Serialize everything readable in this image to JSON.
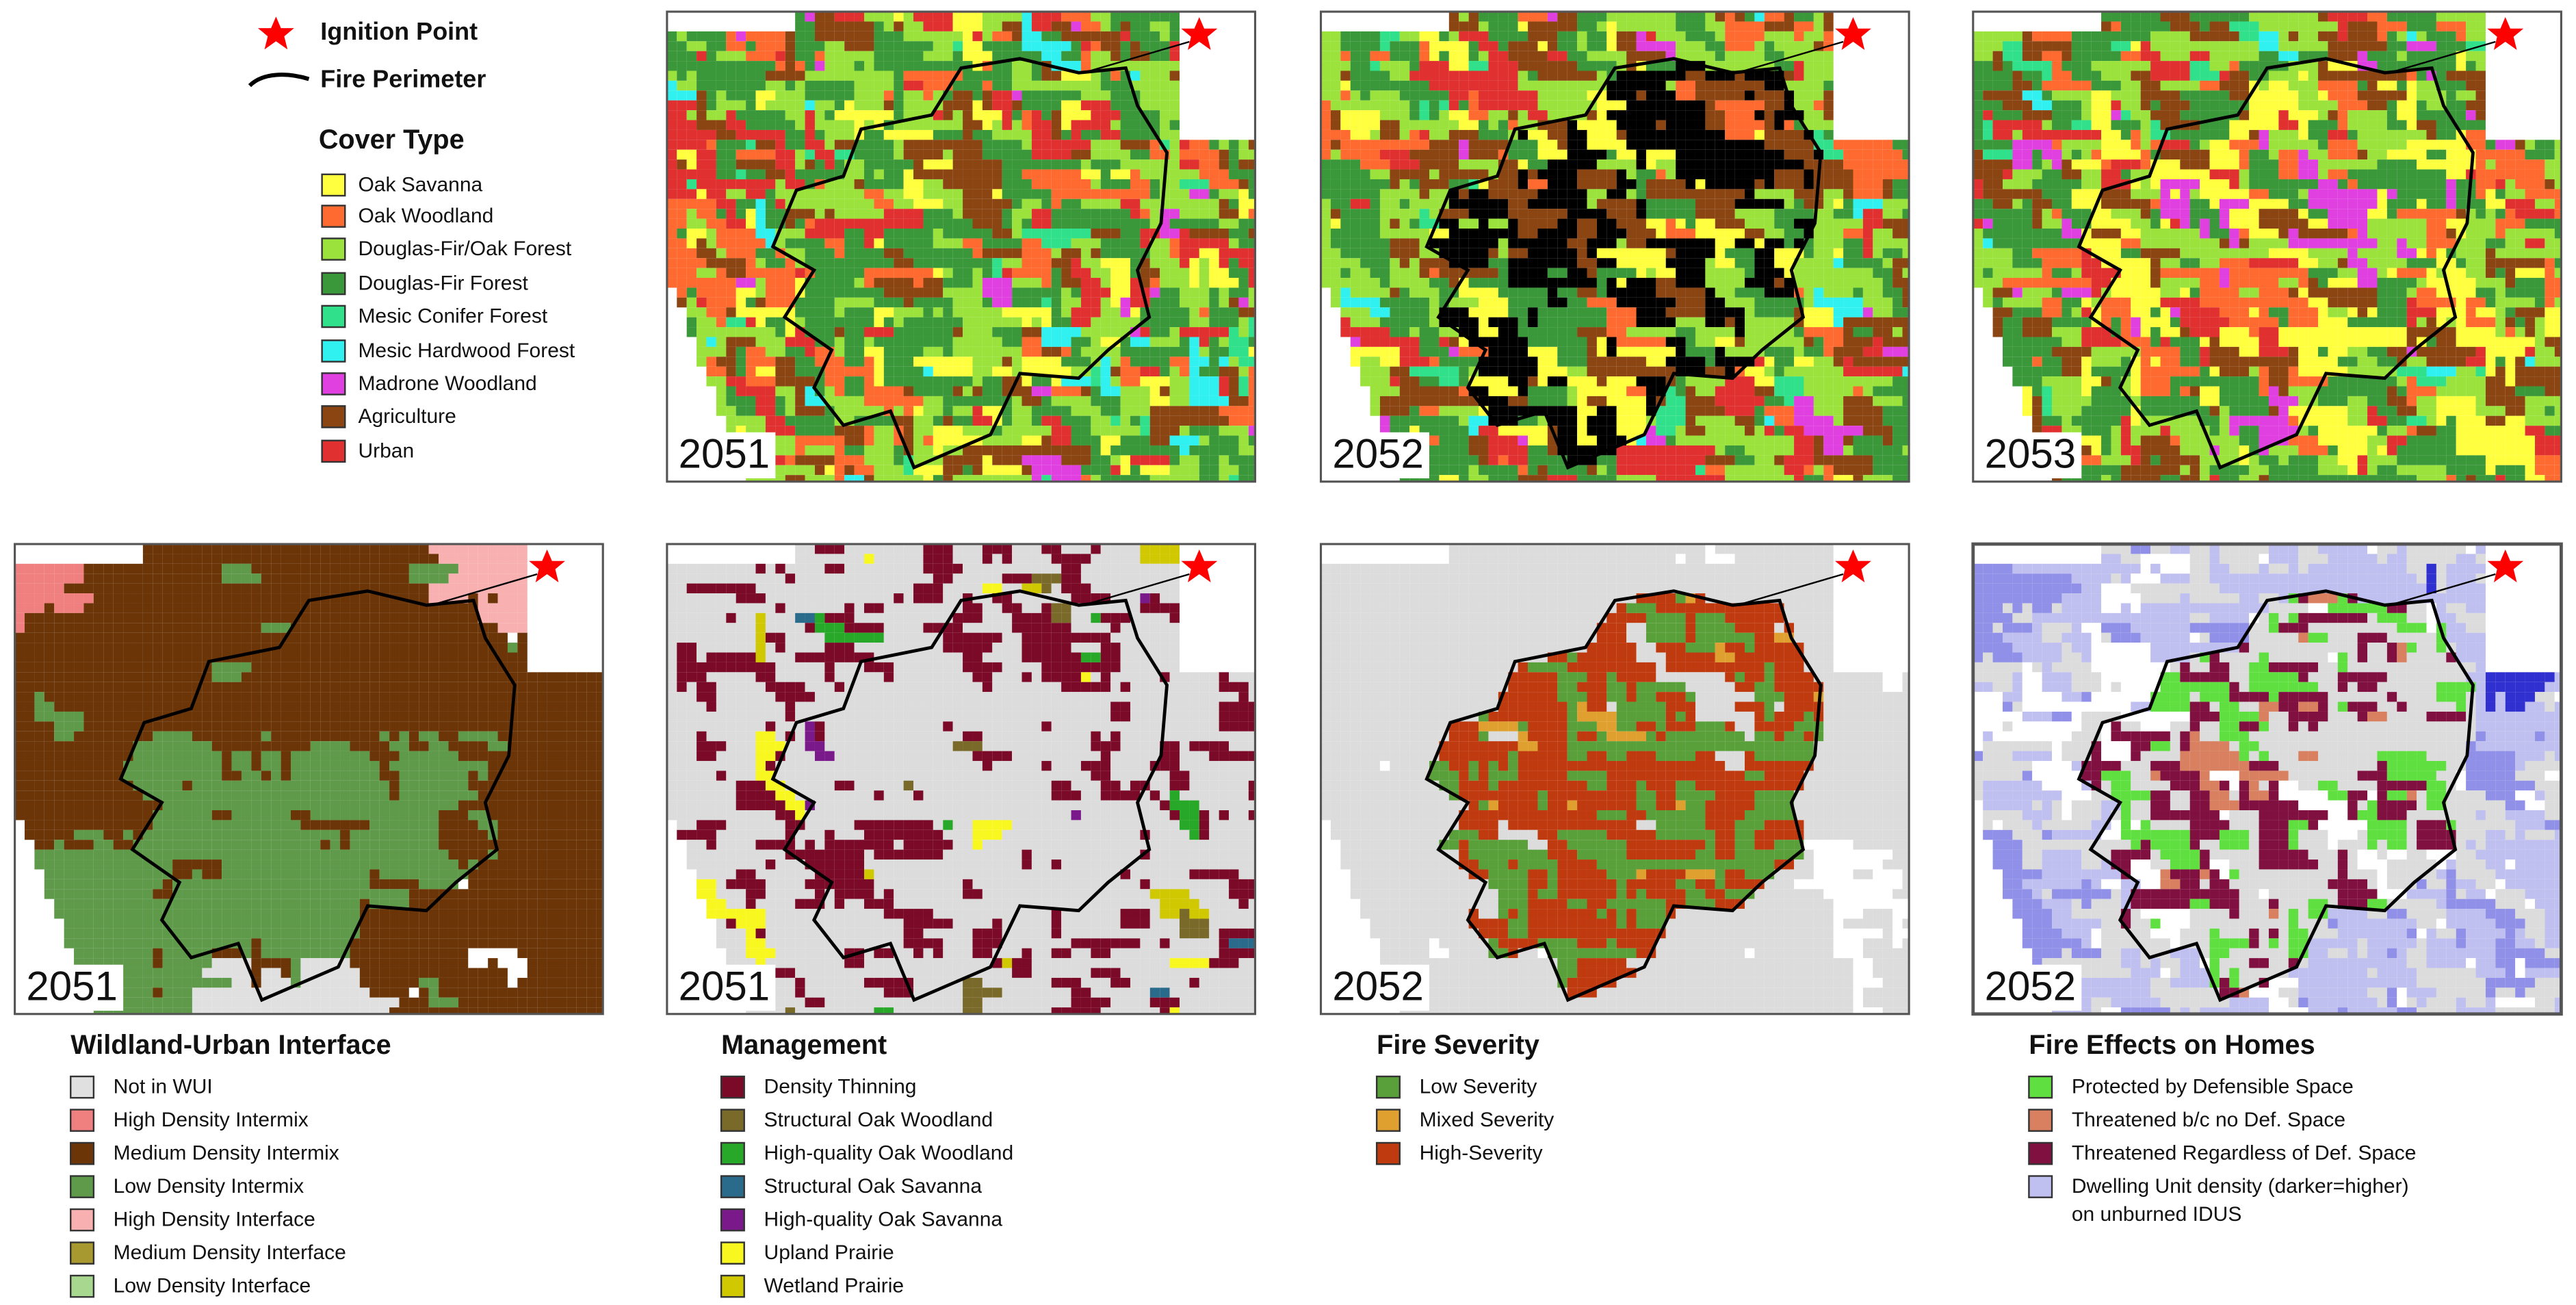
{
  "legend": {
    "ignition_point": "Ignition Point",
    "fire_perimeter": "Fire Perimeter",
    "cover_type": {
      "title": "Cover Type",
      "items": [
        {
          "label": "Oak Savanna",
          "color": "#ffff40"
        },
        {
          "label": "Oak Woodland",
          "color": "#ff6a30"
        },
        {
          "label": "Douglas-Fir/Oak Forest",
          "color": "#9be33c"
        },
        {
          "label": "Douglas-Fir Forest",
          "color": "#3a983a"
        },
        {
          "label": "Mesic Conifer Forest",
          "color": "#30e08a"
        },
        {
          "label": "Mesic Hardwood Forest",
          "color": "#30f0f0"
        },
        {
          "label": "Madrone Woodland",
          "color": "#e040e0"
        },
        {
          "label": "Agriculture",
          "color": "#8b4513"
        },
        {
          "label": "Urban",
          "color": "#e03030"
        }
      ]
    }
  },
  "top_panels": [
    {
      "year": "2051"
    },
    {
      "year": "2052"
    },
    {
      "year": "2053"
    }
  ],
  "bottom_panels": [
    {
      "year": "2051",
      "legend": {
        "title": "Wildland-Urban Interface",
        "items": [
          {
            "label": "Not in WUI",
            "color": "#e0e0e0"
          },
          {
            "label": "High Density Intermix",
            "color": "#f08080"
          },
          {
            "label": "Medium Density Intermix",
            "color": "#6b3508"
          },
          {
            "label": "Low Density Intermix",
            "color": "#5e9a4a"
          },
          {
            "label": "High Density Interface",
            "color": "#f8b0b0"
          },
          {
            "label": "Medium Density Interface",
            "color": "#a89830"
          },
          {
            "label": "Low Density Interface",
            "color": "#a8d890"
          }
        ]
      }
    },
    {
      "year": "2051",
      "legend": {
        "title": "Management",
        "items": [
          {
            "label": "Density Thinning",
            "color": "#7a0a28"
          },
          {
            "label": "Structural Oak Woodland",
            "color": "#7a6a2a"
          },
          {
            "label": "High-quality Oak Woodland",
            "color": "#28a828"
          },
          {
            "label": "Structural Oak Savanna",
            "color": "#2a6a8a"
          },
          {
            "label": "High-quality Oak Savanna",
            "color": "#7a1a8a"
          },
          {
            "label": "Upland Prairie",
            "color": "#f8f820"
          },
          {
            "label": "Wetland Prairie",
            "color": "#d0c800"
          }
        ]
      }
    },
    {
      "year": "2052",
      "legend": {
        "title": "Fire Severity",
        "items": [
          {
            "label": "Low Severity",
            "color": "#5aa03a"
          },
          {
            "label": "Mixed Severity",
            "color": "#e0a030"
          },
          {
            "label": "High-Severity",
            "color": "#c03a10"
          }
        ]
      }
    },
    {
      "year": "2052",
      "legend": {
        "title": "Fire Effects on Homes",
        "items": [
          {
            "label": "Protected by Defensible Space",
            "color": "#60e040"
          },
          {
            "label": "Threatened b/c no Def. Space",
            "color": "#d88060"
          },
          {
            "label": "Threatened Regardless of Def. Space",
            "color": "#801040"
          },
          {
            "label": "Dwelling Unit density (darker=higher)",
            "label_continued": "on unburned IDUS",
            "color": "#c0c0f0"
          }
        ]
      }
    }
  ]
}
